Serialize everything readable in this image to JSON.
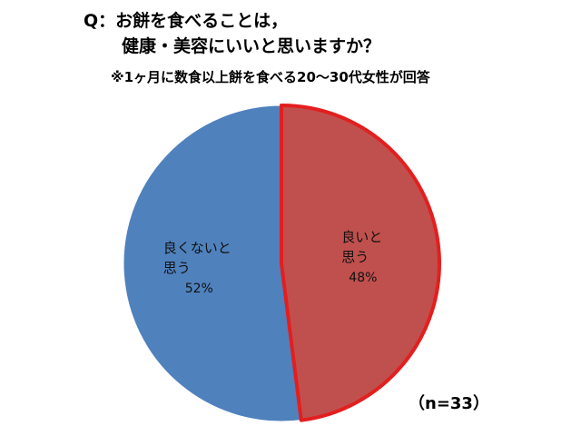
{
  "chart_data": {
    "type": "pie",
    "title": [
      "Q：お餅を食べることは，",
      "健康・美容にいいと思いますか？"
    ],
    "subtitle": "※1ヶ月に数食以上餅を食べる20～30代女性が回答",
    "annotation": "（n=33）",
    "categories": [
      "良いと思う",
      "良くないと思う"
    ],
    "values": [
      48,
      52
    ],
    "value_labels": [
      "48%",
      "52%"
    ],
    "colors": [
      "#c0504d",
      "#4f81bd"
    ]
  }
}
